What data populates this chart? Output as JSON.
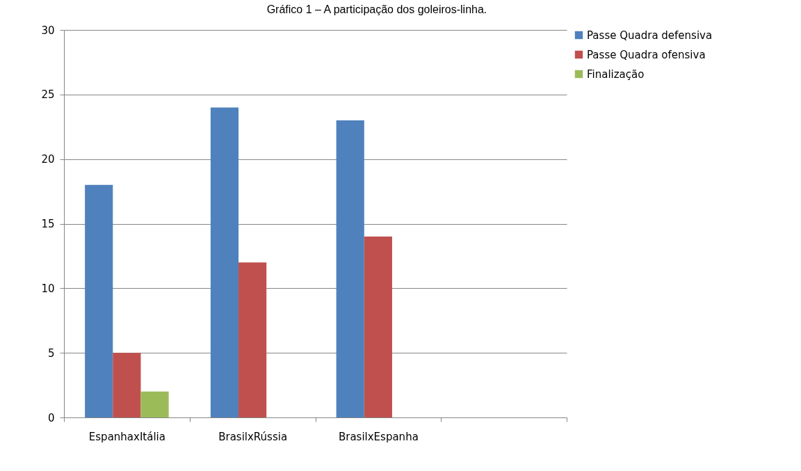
{
  "chart_data": {
    "type": "bar",
    "title": "Gráfico 1 – A participação dos goleiros-linha.",
    "categories": [
      "EspanhaxItália",
      "BrasilxRússia",
      "BrasilxEspanha",
      null
    ],
    "series": [
      {
        "name": "Passe Quadra defensiva",
        "color": "#4f81bd",
        "values": [
          18,
          24,
          23,
          null
        ]
      },
      {
        "name": "Passe Quadra ofensiva",
        "color": "#c0504d",
        "values": [
          5,
          12,
          14,
          null
        ]
      },
      {
        "name": "Finalização",
        "color": "#9bbb59",
        "values": [
          2,
          null,
          null,
          null
        ]
      }
    ],
    "ylim": [
      0,
      30
    ],
    "yticks": [
      0,
      5,
      10,
      15,
      20,
      25,
      30
    ],
    "grid": "y",
    "legend": "right"
  }
}
